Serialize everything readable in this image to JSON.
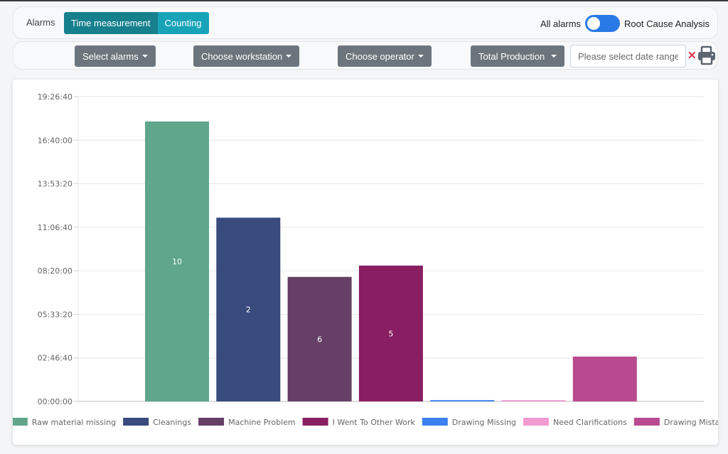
{
  "toolbar": {
    "alarms_label": "Alarms",
    "mode_tabs": [
      "Time measurement",
      "Counting"
    ],
    "all_alarms_label": "All alarms",
    "root_cause_label": "Root Cause Analysis"
  },
  "filters": {
    "select_alarms": "Select alarms",
    "choose_workstation": "Choose workstation",
    "choose_operator": "Choose operator",
    "total_production": "Total Production",
    "date_placeholder": "Please select date range",
    "clear_symbol": "✕"
  },
  "icons": {
    "print": "printer-icon",
    "clear": "close-icon"
  },
  "colors": {
    "teal_dark": "#17808d",
    "teal_light": "#19a3b8",
    "toggle_blue": "#2979e6",
    "dropdown_gray": "#6c757d",
    "clear_red": "#d9324b"
  },
  "chart_data": {
    "type": "bar",
    "categories": [
      "Raw material missing",
      "Cleanings",
      "Machine Problem",
      "I Went To Other Work",
      "Drawing Missing",
      "Need Clarifications",
      "Drawing Mistake"
    ],
    "values_seconds": [
      64300,
      42200,
      28600,
      31200,
      300,
      300,
      10300
    ],
    "data_labels": [
      "10",
      "2",
      "6",
      "5",
      "",
      "",
      ""
    ],
    "colors": [
      "#5fa68a",
      "#394a7d",
      "#653f66",
      "#8a1e62",
      "#3a80f0",
      "#f29ad2",
      "#b94a8f"
    ],
    "y_ticks": [
      "00:00:00",
      "02:46:40",
      "05:33:20",
      "08:20:00",
      "11:06:40",
      "13:53:20",
      "16:40:00",
      "19:26:40"
    ],
    "ylim_seconds": [
      0,
      70000
    ],
    "y_tick_step_seconds": 10000,
    "grid": true,
    "legend_position": "bottom"
  }
}
